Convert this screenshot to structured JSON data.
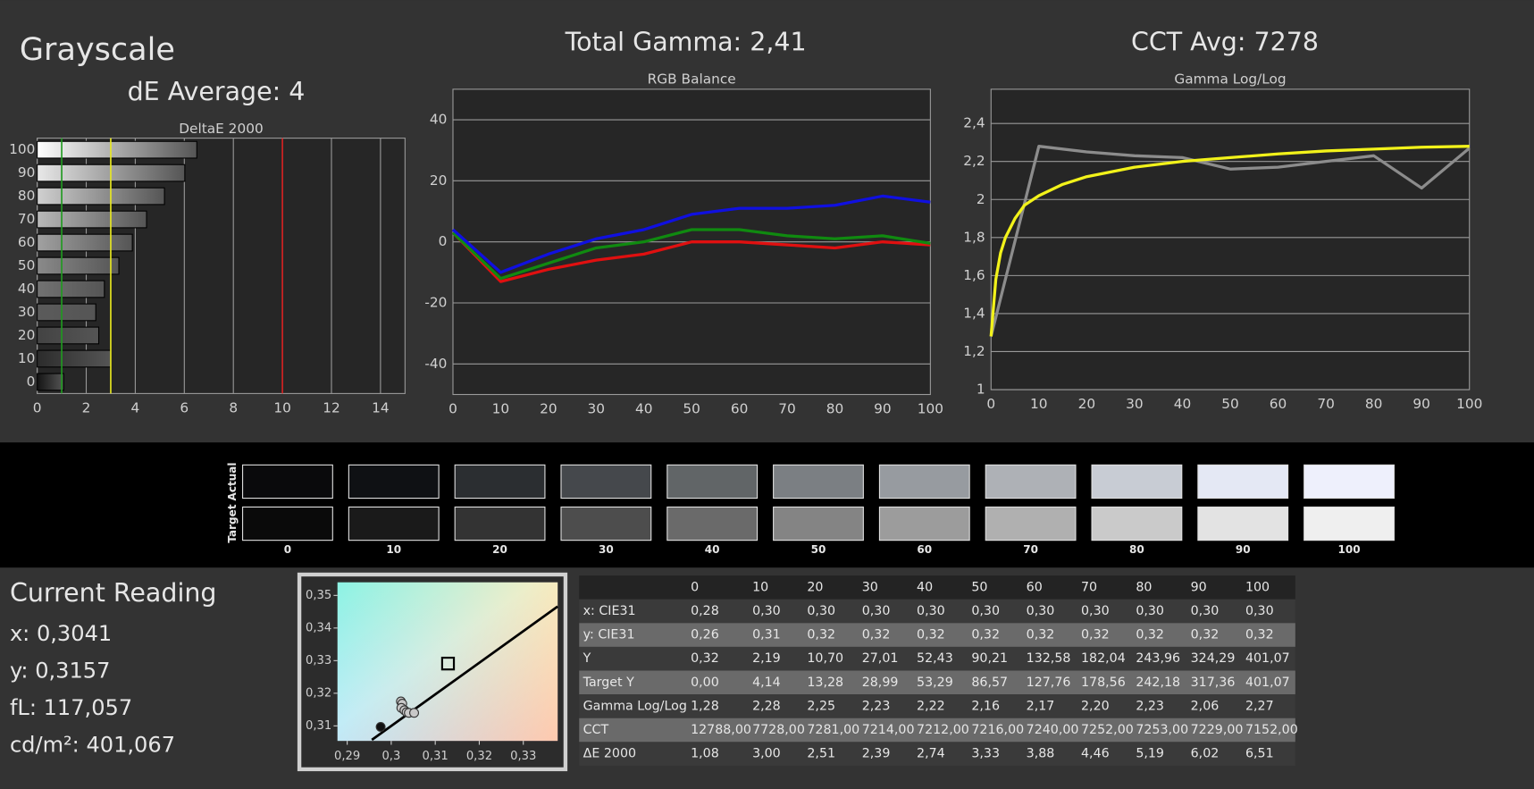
{
  "header": {
    "title": "Grayscale"
  },
  "chart_data": [
    {
      "type": "hbar",
      "title": "DeltaE 2000",
      "subtitle": "dE Average: 4",
      "categories": [
        "0",
        "10",
        "20",
        "30",
        "40",
        "50",
        "60",
        "70",
        "80",
        "90",
        "100"
      ],
      "values": [
        1.08,
        3.0,
        2.51,
        2.39,
        2.74,
        3.33,
        3.88,
        4.46,
        5.19,
        6.02,
        6.51
      ],
      "xlim": [
        0,
        15
      ],
      "xticks": [
        0,
        2,
        4,
        6,
        8,
        10,
        12,
        14
      ],
      "grid": true,
      "reference_lines": [
        {
          "value": 1,
          "color": "#1f9a1f"
        },
        {
          "value": 3,
          "color": "#e8e820"
        },
        {
          "value": 10,
          "color": "#d42020"
        }
      ]
    },
    {
      "type": "line",
      "title": "RGB Balance",
      "subtitle": "Total Gamma: 2,41",
      "x": [
        0,
        10,
        20,
        30,
        40,
        50,
        60,
        70,
        80,
        90,
        100
      ],
      "series": [
        {
          "color": "#e01010",
          "values": [
            3,
            -13,
            -9,
            -6,
            -4,
            0,
            0,
            -1,
            -2,
            0,
            -1
          ]
        },
        {
          "color": "#108a10",
          "values": [
            3,
            -12,
            -7,
            -2,
            0,
            4,
            4,
            2,
            1,
            2,
            -0.5
          ]
        },
        {
          "color": "#1010e0",
          "values": [
            4,
            -10,
            -4,
            1,
            4,
            9,
            11,
            11,
            12,
            15,
            13
          ]
        }
      ],
      "xlim": [
        0,
        100
      ],
      "xticks": [
        0,
        10,
        20,
        30,
        40,
        50,
        60,
        70,
        80,
        90,
        100
      ],
      "ylim": [
        -50,
        50
      ],
      "yticks": [
        -40,
        -20,
        0,
        20,
        40
      ],
      "grid": true
    },
    {
      "type": "line",
      "title": "Gamma Log/Log",
      "subtitle": "CCT Avg: 7278",
      "series": [
        {
          "color": "#8c8c8c",
          "x": [
            0,
            10,
            20,
            30,
            40,
            50,
            60,
            70,
            80,
            90,
            100
          ],
          "values": [
            1.28,
            2.28,
            2.25,
            2.23,
            2.22,
            2.16,
            2.17,
            2.2,
            2.23,
            2.06,
            2.27
          ]
        },
        {
          "color": "#f2f21a",
          "x": [
            0,
            1,
            2,
            3,
            5,
            7,
            10,
            15,
            20,
            30,
            40,
            50,
            60,
            70,
            80,
            90,
            100
          ],
          "values": [
            1.28,
            1.58,
            1.72,
            1.8,
            1.9,
            1.97,
            2.02,
            2.08,
            2.12,
            2.17,
            2.2,
            2.22,
            2.24,
            2.255,
            2.265,
            2.275,
            2.28
          ]
        }
      ],
      "xlim": [
        0,
        100
      ],
      "xticks": [
        0,
        10,
        20,
        30,
        40,
        50,
        60,
        70,
        80,
        90,
        100
      ],
      "ylim": [
        1,
        2.58
      ],
      "yticks": [
        1,
        {
          "value": 1.2,
          "label": "1,2"
        },
        {
          "value": 1.4,
          "label": "1,4"
        },
        {
          "value": 1.6,
          "label": "1,6"
        },
        {
          "value": 1.8,
          "label": "1,8"
        },
        2,
        {
          "value": 2.2,
          "label": "2,2"
        },
        {
          "value": 2.4,
          "label": "2,4"
        }
      ],
      "grid": true
    },
    {
      "type": "scatter",
      "series": [
        {
          "color": "#111111",
          "x": [
            0.2976
          ],
          "values": [
            0.3097
          ]
        },
        {
          "color": "#c8c8c8",
          "x": [
            0.3022,
            0.3025,
            0.3023,
            0.303,
            0.3035,
            0.304,
            0.3052
          ],
          "values": [
            0.3175,
            0.3168,
            0.3155,
            0.3148,
            0.3142,
            0.314,
            0.314
          ]
        }
      ],
      "target": {
        "x": 0.3129,
        "y": 0.3291
      },
      "locus": {
        "x": [
          0.2956,
          0.3378
        ],
        "values": [
          0.3057,
          0.3466
        ]
      },
      "xlim": [
        0.2878,
        0.3378
      ],
      "xticks": [
        {
          "value": 0.29,
          "label": "0,29"
        },
        {
          "value": 0.3,
          "label": "0,3"
        },
        {
          "value": 0.31,
          "label": "0,31"
        },
        {
          "value": 0.32,
          "label": "0,32"
        },
        {
          "value": 0.33,
          "label": "0,33"
        }
      ],
      "ylim": [
        0.3054,
        0.354
      ],
      "yticks": [
        {
          "value": 0.31,
          "label": "0,31"
        },
        {
          "value": 0.32,
          "label": "0,32"
        },
        {
          "value": 0.33,
          "label": "0,33"
        },
        {
          "value": 0.34,
          "label": "0,34"
        },
        {
          "value": 0.35,
          "label": "0,35"
        }
      ]
    }
  ],
  "swatches": {
    "row_labels": [
      "Actual",
      "Target"
    ],
    "levels": [
      "0",
      "10",
      "20",
      "30",
      "40",
      "50",
      "60",
      "70",
      "80",
      "90",
      "100"
    ],
    "actual_colors": [
      "#0a0a0c",
      "#0f1114",
      "#2b2e31",
      "#45484c",
      "#616567",
      "#7b7f83",
      "#979ba0",
      "#aeb1b6",
      "#c8ccd4",
      "#e4e8f4",
      "#eef0fc"
    ],
    "target_colors": [
      "#0a0a0a",
      "#1a1a1a",
      "#333333",
      "#4d4d4d",
      "#6a6a6a",
      "#848484",
      "#9c9c9c",
      "#b0b0b0",
      "#cacaca",
      "#e3e3e3",
      "#efefef"
    ]
  },
  "current_reading": {
    "title": "Current Reading",
    "lines": [
      "x: 0,3041",
      "y: 0,3157",
      "fL: 117,057",
      "cd/m²: 401,067"
    ]
  },
  "table": {
    "columns": [
      "0",
      "10",
      "20",
      "30",
      "40",
      "50",
      "60",
      "70",
      "80",
      "90",
      "100"
    ],
    "rows": [
      [
        "x: CIE31",
        "0,28",
        "0,30",
        "0,30",
        "0,30",
        "0,30",
        "0,30",
        "0,30",
        "0,30",
        "0,30",
        "0,30",
        "0,30"
      ],
      [
        "y: CIE31",
        "0,26",
        "0,31",
        "0,32",
        "0,32",
        "0,32",
        "0,32",
        "0,32",
        "0,32",
        "0,32",
        "0,32",
        "0,32"
      ],
      [
        "Y",
        "0,32",
        "2,19",
        "10,70",
        "27,01",
        "52,43",
        "90,21",
        "132,58",
        "182,04",
        "243,96",
        "324,29",
        "401,07"
      ],
      [
        "Target Y",
        "0,00",
        "4,14",
        "13,28",
        "28,99",
        "53,29",
        "86,57",
        "127,76",
        "178,56",
        "242,18",
        "317,36",
        "401,07"
      ],
      [
        "Gamma Log/Log",
        "1,28",
        "2,28",
        "2,25",
        "2,23",
        "2,22",
        "2,16",
        "2,17",
        "2,20",
        "2,23",
        "2,06",
        "2,27"
      ],
      [
        "CCT",
        "12788,00",
        "7728,00",
        "7281,00",
        "7214,00",
        "7212,00",
        "7216,00",
        "7240,00",
        "7252,00",
        "7253,00",
        "7229,00",
        "7152,00"
      ],
      [
        "ΔE 2000",
        "1,08",
        "3,00",
        "2,51",
        "2,39",
        "2,74",
        "3,33",
        "3,88",
        "4,46",
        "5,19",
        "6,02",
        "6,51"
      ]
    ]
  }
}
